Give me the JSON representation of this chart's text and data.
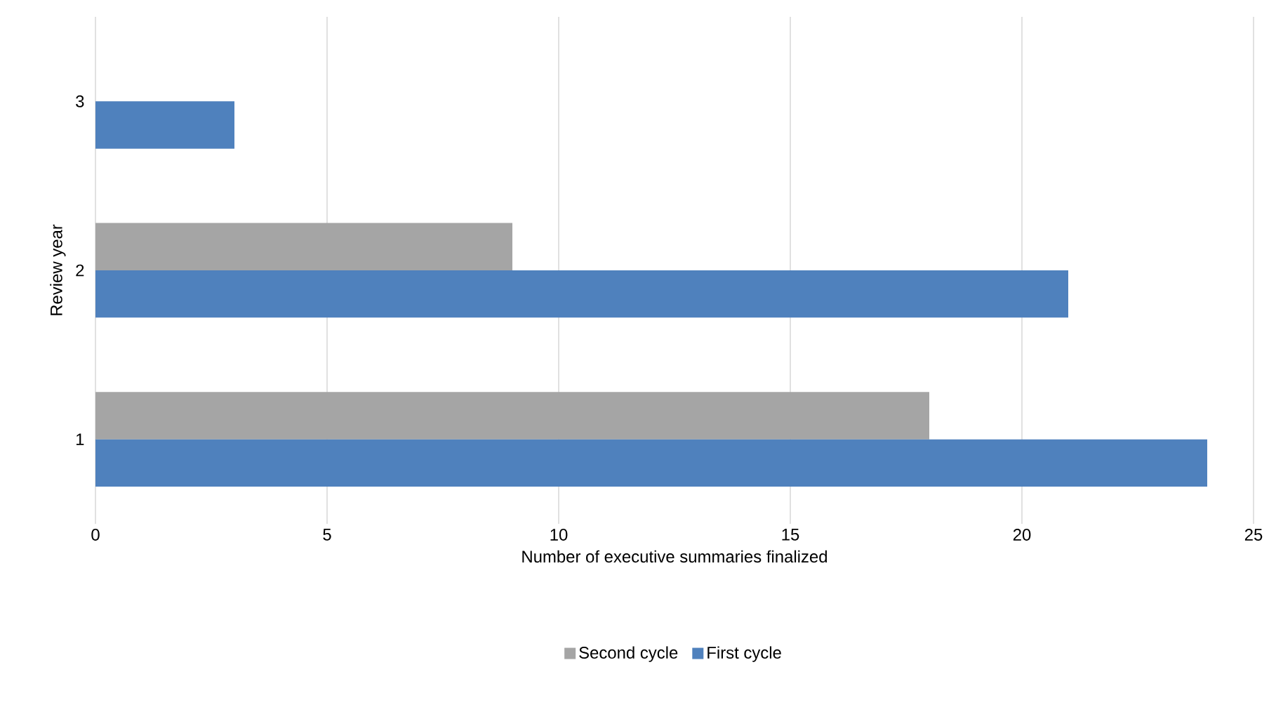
{
  "chart_data": {
    "type": "bar",
    "orientation": "horizontal",
    "xlabel": "Number of executive summaries finalized",
    "ylabel": "Review year",
    "categories": [
      "3",
      "2",
      "1"
    ],
    "series": [
      {
        "name": "Second cycle",
        "color": "#a5a5a5",
        "values": [
          null,
          9,
          18
        ]
      },
      {
        "name": "First cycle",
        "color": "#4f81bd",
        "values": [
          3,
          21,
          24
        ]
      }
    ],
    "xlim": [
      0,
      25
    ],
    "xticks": [
      0,
      5,
      10,
      15,
      20,
      25
    ],
    "grid": "x",
    "legend": "bottom"
  }
}
